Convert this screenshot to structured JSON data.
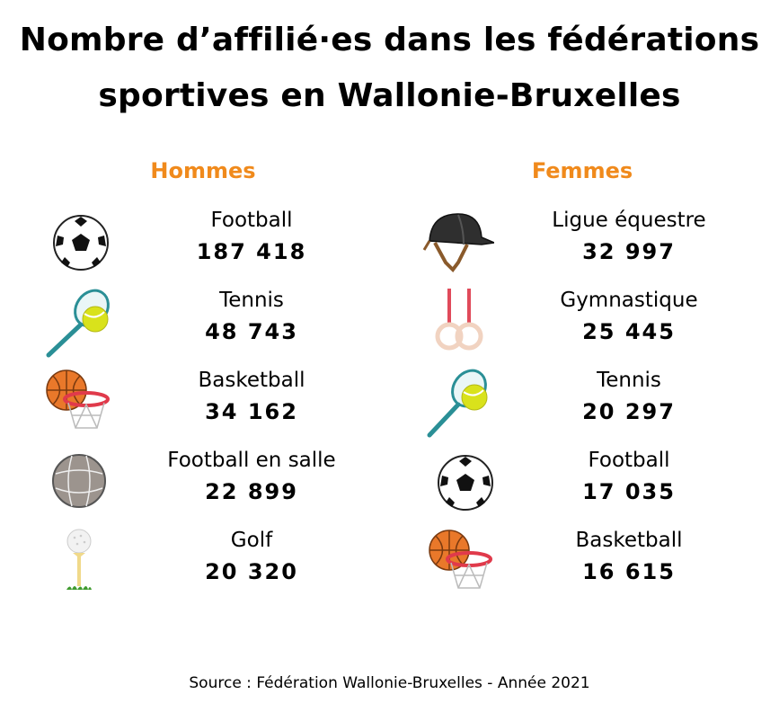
{
  "title_line1": "Nombre d’affilié·es dans les fédérations",
  "title_line2": "sportives en Wallonie-Bruxelles",
  "men": {
    "heading": "Hommes",
    "items": [
      {
        "label": "Football",
        "value": "187 418",
        "icon": "soccer-ball-icon"
      },
      {
        "label": "Tennis",
        "value": "48 743",
        "icon": "tennis-racket-icon"
      },
      {
        "label": "Basketball",
        "value": "34 162",
        "icon": "basketball-hoop-icon"
      },
      {
        "label": "Football en salle",
        "value": "22 899",
        "icon": "futsal-ball-icon"
      },
      {
        "label": "Golf",
        "value": "20 320",
        "icon": "golf-ball-icon"
      }
    ]
  },
  "women": {
    "heading": "Femmes",
    "items": [
      {
        "label": "Ligue équestre",
        "value": "32 997",
        "icon": "riding-helmet-icon"
      },
      {
        "label": "Gymnastique",
        "value": "25 445",
        "icon": "gymnastic-rings-icon"
      },
      {
        "label": "Tennis",
        "value": "20 297",
        "icon": "tennis-racket-icon"
      },
      {
        "label": "Football",
        "value": "17 035",
        "icon": "soccer-ball-icon"
      },
      {
        "label": "Basketball",
        "value": "16 615",
        "icon": "basketball-hoop-icon"
      }
    ]
  },
  "source": "Source : Fédération Wallonie-Bruxelles - Année 2021",
  "colors": {
    "accent": "#f08a1c",
    "text": "#000000"
  }
}
